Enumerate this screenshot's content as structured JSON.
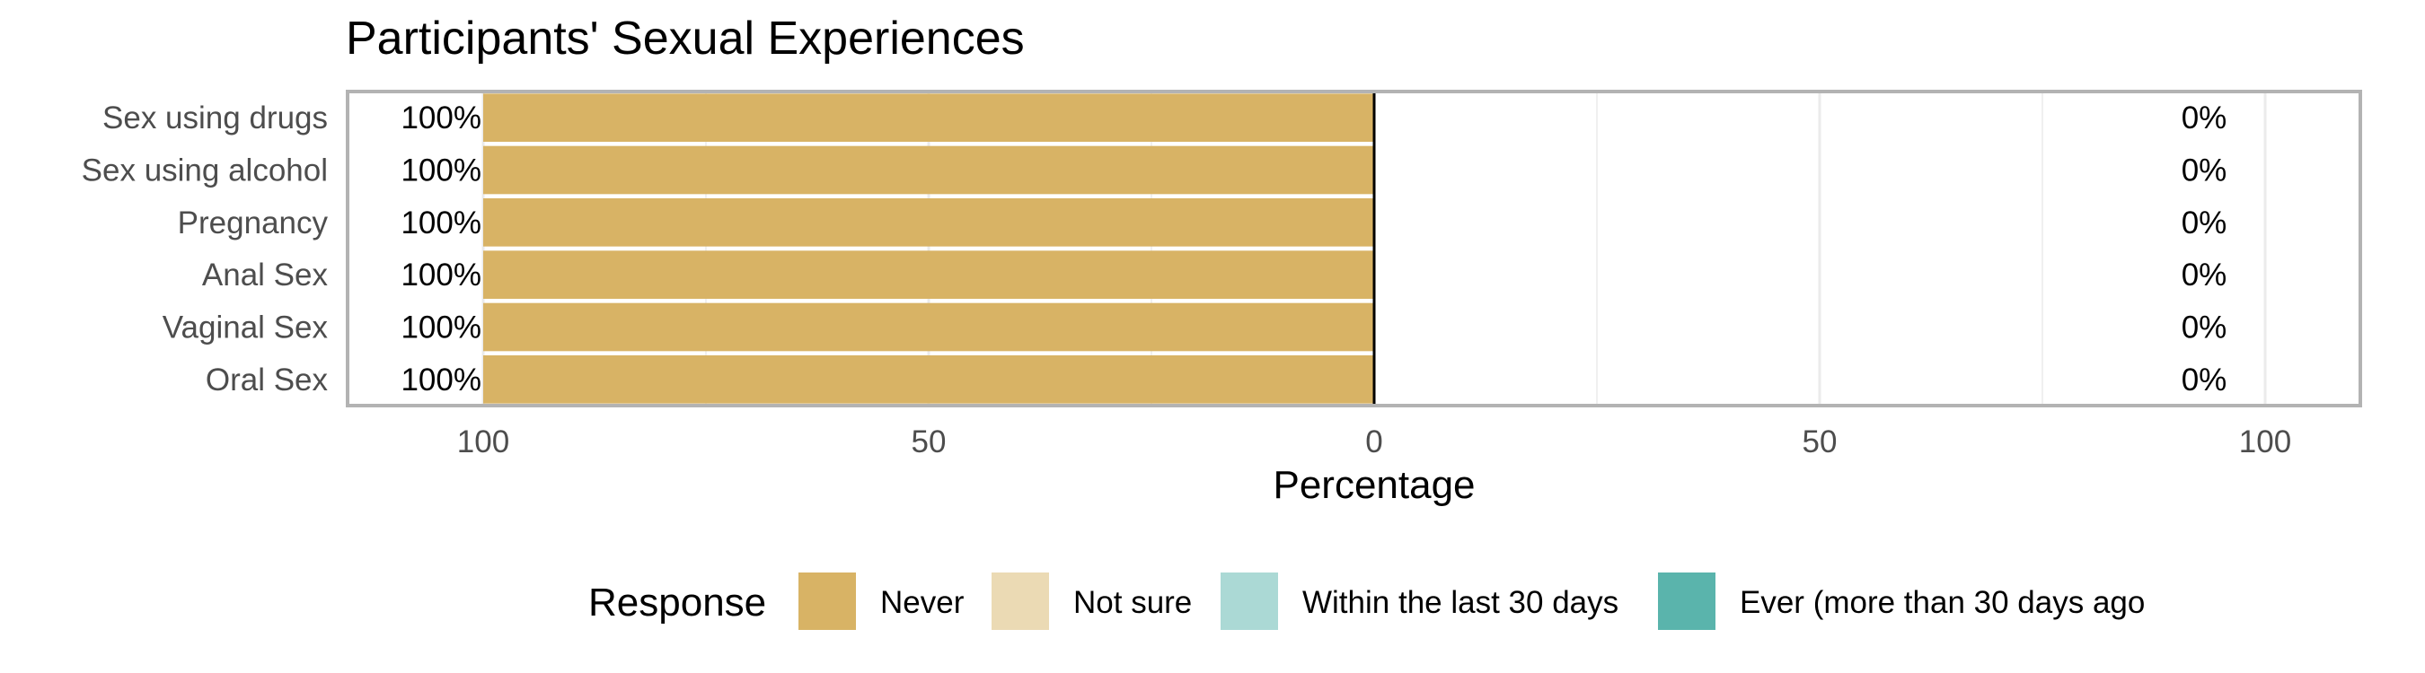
{
  "chart_data": {
    "type": "bar",
    "orientation": "horizontal-diverging",
    "title": "Participants' Sexual Experiences",
    "xlabel": "Percentage",
    "ylabel": "",
    "xlim": [
      -100,
      100
    ],
    "x_ticks": [
      -100,
      -50,
      0,
      50,
      100
    ],
    "x_tick_labels": [
      "100",
      "50",
      "0",
      "50",
      "100"
    ],
    "grid": true,
    "categories": [
      "Sex using drugs",
      "Sex using alcohol",
      "Pregnancy",
      "Anal Sex",
      "Vaginal Sex",
      "Oral Sex"
    ],
    "series": [
      {
        "name": "Never",
        "side": "left",
        "color": "#D8B365",
        "values": [
          100,
          100,
          100,
          100,
          100,
          100
        ]
      },
      {
        "name": "Not sure",
        "side": "left",
        "color": "#EBDAB4",
        "values": [
          0,
          0,
          0,
          0,
          0,
          0
        ]
      },
      {
        "name": "Within the last 30 days",
        "side": "right",
        "color": "#ABD9D5",
        "values": [
          0,
          0,
          0,
          0,
          0,
          0
        ]
      },
      {
        "name": "Ever (more than 30 days ago",
        "side": "right",
        "color": "#5AB4AC",
        "values": [
          0,
          0,
          0,
          0,
          0,
          0
        ]
      }
    ],
    "left_labels": [
      "100%",
      "100%",
      "100%",
      "100%",
      "100%",
      "100%"
    ],
    "right_labels": [
      "0%",
      "0%",
      "0%",
      "0%",
      "0%",
      "0%"
    ],
    "legend": {
      "title": "Response",
      "position": "bottom"
    }
  }
}
